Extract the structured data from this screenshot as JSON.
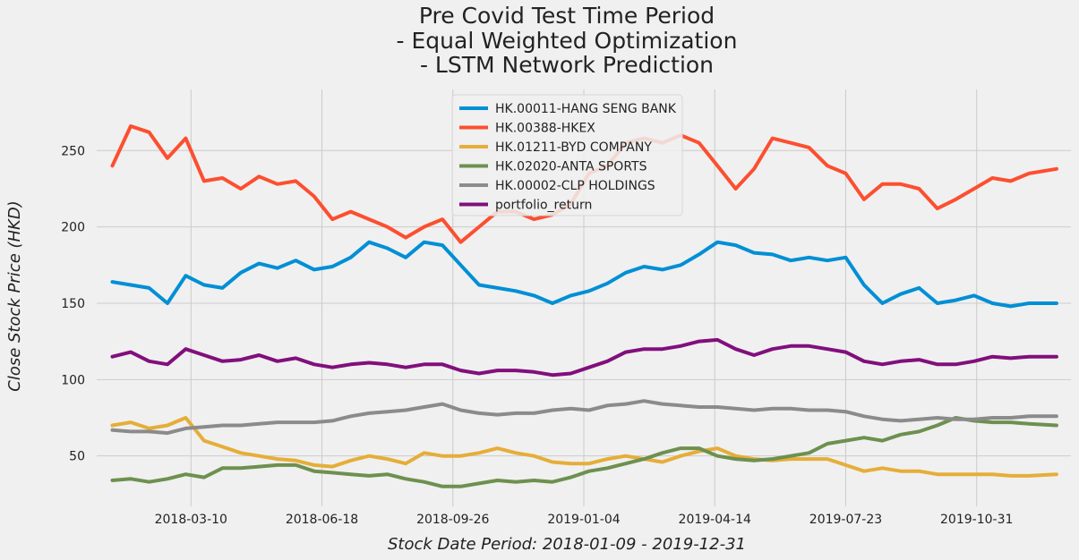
{
  "chart_data": {
    "type": "line",
    "title": [
      "Pre Covid Test Time Period",
      "- Equal Weighted Optimization",
      "- LSTM Network Prediction"
    ],
    "xlabel": "Stock Date Period: 2018-01-09 - 2019-12-31",
    "ylabel": "Close Stock Price (HKD)",
    "xlim": [
      "2018-01-09",
      "2019-12-31"
    ],
    "ylim": [
      17,
      290
    ],
    "grid": true,
    "legend_position": "upper-center",
    "x_ticks": [
      "2018-03-10",
      "2018-06-18",
      "2018-09-26",
      "2019-01-04",
      "2019-04-14",
      "2019-07-23",
      "2019-10-31"
    ],
    "y_ticks": [
      50,
      100,
      150,
      200,
      250
    ],
    "x": [
      "2018-01-09",
      "2018-01-23",
      "2018-02-06",
      "2018-02-20",
      "2018-03-06",
      "2018-03-20",
      "2018-04-03",
      "2018-04-17",
      "2018-05-01",
      "2018-05-15",
      "2018-05-29",
      "2018-06-12",
      "2018-06-26",
      "2018-07-10",
      "2018-07-24",
      "2018-08-07",
      "2018-08-21",
      "2018-09-04",
      "2018-09-18",
      "2018-10-02",
      "2018-10-16",
      "2018-10-30",
      "2018-11-13",
      "2018-11-27",
      "2018-12-11",
      "2018-12-25",
      "2019-01-08",
      "2019-01-22",
      "2019-02-05",
      "2019-02-19",
      "2019-03-05",
      "2019-03-19",
      "2019-04-02",
      "2019-04-16",
      "2019-04-30",
      "2019-05-14",
      "2019-05-28",
      "2019-06-11",
      "2019-06-25",
      "2019-07-09",
      "2019-07-23",
      "2019-08-06",
      "2019-08-20",
      "2019-09-03",
      "2019-09-17",
      "2019-10-01",
      "2019-10-15",
      "2019-10-29",
      "2019-11-12",
      "2019-11-26",
      "2019-12-10",
      "2019-12-31"
    ],
    "series": [
      {
        "name": "HK.00011-HANG SENG BANK",
        "color": "#008fd5",
        "values": [
          164,
          162,
          160,
          150,
          168,
          162,
          160,
          170,
          176,
          173,
          178,
          172,
          174,
          180,
          190,
          186,
          180,
          190,
          188,
          175,
          162,
          160,
          158,
          155,
          150,
          155,
          158,
          163,
          170,
          174,
          172,
          175,
          182,
          190,
          188,
          183,
          182,
          178,
          180,
          178,
          180,
          162,
          150,
          156,
          160,
          150,
          152,
          155,
          150,
          148,
          150,
          150
        ]
      },
      {
        "name": "HK.00388-HKEX",
        "color": "#fc4f30",
        "values": [
          240,
          266,
          262,
          245,
          258,
          230,
          232,
          225,
          233,
          228,
          230,
          220,
          205,
          210,
          205,
          200,
          193,
          200,
          205,
          190,
          200,
          210,
          210,
          205,
          208,
          215,
          235,
          240,
          255,
          258,
          255,
          260,
          255,
          240,
          225,
          238,
          258,
          255,
          252,
          240,
          235,
          218,
          228,
          228,
          225,
          212,
          218,
          225,
          232,
          230,
          235,
          238
        ]
      },
      {
        "name": "HK.01211-BYD COMPANY",
        "color": "#e5ae38",
        "values": [
          70,
          72,
          68,
          70,
          75,
          60,
          56,
          52,
          50,
          48,
          47,
          44,
          43,
          47,
          50,
          48,
          45,
          52,
          50,
          50,
          52,
          55,
          52,
          50,
          46,
          45,
          45,
          48,
          50,
          48,
          46,
          50,
          53,
          55,
          50,
          48,
          47,
          48,
          48,
          48,
          44,
          40,
          42,
          40,
          40,
          38,
          38,
          38,
          38,
          37,
          37,
          38
        ]
      },
      {
        "name": "HK.02020-ANTA SPORTS",
        "color": "#6d904f",
        "values": [
          34,
          35,
          33,
          35,
          38,
          36,
          42,
          42,
          43,
          44,
          44,
          40,
          39,
          38,
          37,
          38,
          35,
          33,
          30,
          30,
          32,
          34,
          33,
          34,
          33,
          36,
          40,
          42,
          45,
          48,
          52,
          55,
          55,
          50,
          48,
          47,
          48,
          50,
          52,
          58,
          60,
          62,
          60,
          64,
          66,
          70,
          75,
          73,
          72,
          72,
          71,
          70
        ]
      },
      {
        "name": "HK.00002-CLP HOLDINGS",
        "color": "#8b8b8b",
        "values": [
          67,
          66,
          66,
          65,
          68,
          69,
          70,
          70,
          71,
          72,
          72,
          72,
          73,
          76,
          78,
          79,
          80,
          82,
          84,
          80,
          78,
          77,
          78,
          78,
          80,
          81,
          80,
          83,
          84,
          86,
          84,
          83,
          82,
          82,
          81,
          80,
          81,
          81,
          80,
          80,
          79,
          76,
          74,
          73,
          74,
          75,
          74,
          74,
          75,
          75,
          76,
          76
        ]
      },
      {
        "name": "portfolio_return",
        "color": "#810f7c",
        "values": [
          115,
          118,
          112,
          110,
          120,
          116,
          112,
          113,
          116,
          112,
          114,
          110,
          108,
          110,
          111,
          110,
          108,
          110,
          110,
          106,
          104,
          106,
          106,
          105,
          103,
          104,
          108,
          112,
          118,
          120,
          120,
          122,
          125,
          126,
          120,
          116,
          120,
          122,
          122,
          120,
          118,
          112,
          110,
          112,
          113,
          110,
          110,
          112,
          115,
          114,
          115,
          115
        ]
      }
    ]
  }
}
